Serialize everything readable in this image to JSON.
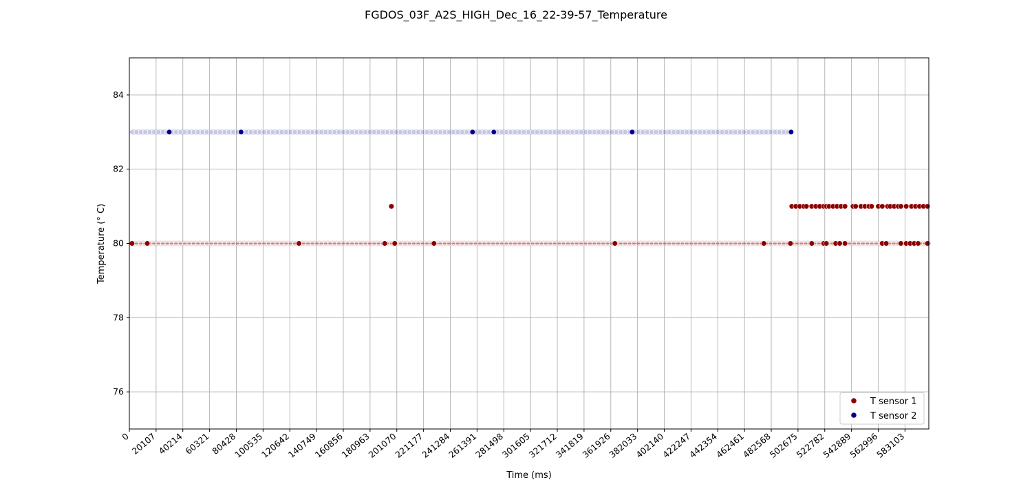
{
  "chart_data": {
    "type": "scatter",
    "title": "FGDOS_03F_A2S_HIGH_Dec_16_22-39-57_Temperature",
    "xlabel": "Time (ms)",
    "ylabel": "Temperature (° C)",
    "xlim": [
      0,
      601000
    ],
    "ylim": [
      75,
      85
    ],
    "grid": true,
    "legend_position": "bottom-right",
    "x_ticks": [
      0,
      20107,
      40214,
      60321,
      80428,
      100535,
      120642,
      140749,
      160856,
      180963,
      201070,
      221177,
      241284,
      261391,
      281498,
      301605,
      321712,
      341819,
      361926,
      382033,
      402140,
      422247,
      442354,
      462461,
      482568,
      502675,
      522782,
      542889,
      562996,
      583103
    ],
    "y_ticks": [
      76,
      78,
      80,
      82,
      84
    ],
    "series": [
      {
        "name": "T sensor 1",
        "color": "#8b0000",
        "dense_segments": [
          {
            "x_start": 2000,
            "x_end": 601000,
            "y": 80
          }
        ],
        "points": [
          {
            "x": 2000,
            "y": 80
          },
          {
            "x": 13500,
            "y": 80
          },
          {
            "x": 127500,
            "y": 80
          },
          {
            "x": 192000,
            "y": 80
          },
          {
            "x": 199500,
            "y": 80
          },
          {
            "x": 229000,
            "y": 80
          },
          {
            "x": 365000,
            "y": 80
          },
          {
            "x": 477000,
            "y": 80
          },
          {
            "x": 497000,
            "y": 80
          },
          {
            "x": 513000,
            "y": 80
          },
          {
            "x": 522000,
            "y": 80
          },
          {
            "x": 524000,
            "y": 80
          },
          {
            "x": 531000,
            "y": 80
          },
          {
            "x": 534000,
            "y": 80
          },
          {
            "x": 538000,
            "y": 80
          },
          {
            "x": 566000,
            "y": 80
          },
          {
            "x": 569000,
            "y": 80
          },
          {
            "x": 580000,
            "y": 80
          },
          {
            "x": 584000,
            "y": 80
          },
          {
            "x": 587000,
            "y": 80
          },
          {
            "x": 590000,
            "y": 80
          },
          {
            "x": 593000,
            "y": 80
          },
          {
            "x": 600000,
            "y": 80
          },
          {
            "x": 197000,
            "y": 81
          },
          {
            "x": 498000,
            "y": 81
          },
          {
            "x": 501000,
            "y": 81
          },
          {
            "x": 504000,
            "y": 81
          },
          {
            "x": 507000,
            "y": 81
          },
          {
            "x": 509000,
            "y": 81
          },
          {
            "x": 513000,
            "y": 81
          },
          {
            "x": 516000,
            "y": 81
          },
          {
            "x": 519000,
            "y": 81
          },
          {
            "x": 522000,
            "y": 81
          },
          {
            "x": 524000,
            "y": 81
          },
          {
            "x": 526000,
            "y": 81
          },
          {
            "x": 529000,
            "y": 81
          },
          {
            "x": 532000,
            "y": 81
          },
          {
            "x": 535000,
            "y": 81
          },
          {
            "x": 538000,
            "y": 81
          },
          {
            "x": 544000,
            "y": 81
          },
          {
            "x": 546000,
            "y": 81
          },
          {
            "x": 550000,
            "y": 81
          },
          {
            "x": 553000,
            "y": 81
          },
          {
            "x": 556000,
            "y": 81
          },
          {
            "x": 558000,
            "y": 81
          },
          {
            "x": 563000,
            "y": 81
          },
          {
            "x": 566000,
            "y": 81
          },
          {
            "x": 570000,
            "y": 81
          },
          {
            "x": 572000,
            "y": 81
          },
          {
            "x": 575000,
            "y": 81
          },
          {
            "x": 578000,
            "y": 81
          },
          {
            "x": 580000,
            "y": 81
          },
          {
            "x": 584000,
            "y": 81
          },
          {
            "x": 588000,
            "y": 81
          },
          {
            "x": 591000,
            "y": 81
          },
          {
            "x": 594000,
            "y": 81
          },
          {
            "x": 597000,
            "y": 81
          },
          {
            "x": 600000,
            "y": 81
          }
        ]
      },
      {
        "name": "T sensor 2",
        "color": "#00008b",
        "dense_segments": [
          {
            "x_start": 2000,
            "x_end": 497500,
            "y": 83
          }
        ],
        "points": [
          {
            "x": 30000,
            "y": 83
          },
          {
            "x": 84000,
            "y": 83
          },
          {
            "x": 258000,
            "y": 83
          },
          {
            "x": 274000,
            "y": 83
          },
          {
            "x": 378000,
            "y": 83
          },
          {
            "x": 497500,
            "y": 83
          }
        ]
      }
    ]
  }
}
